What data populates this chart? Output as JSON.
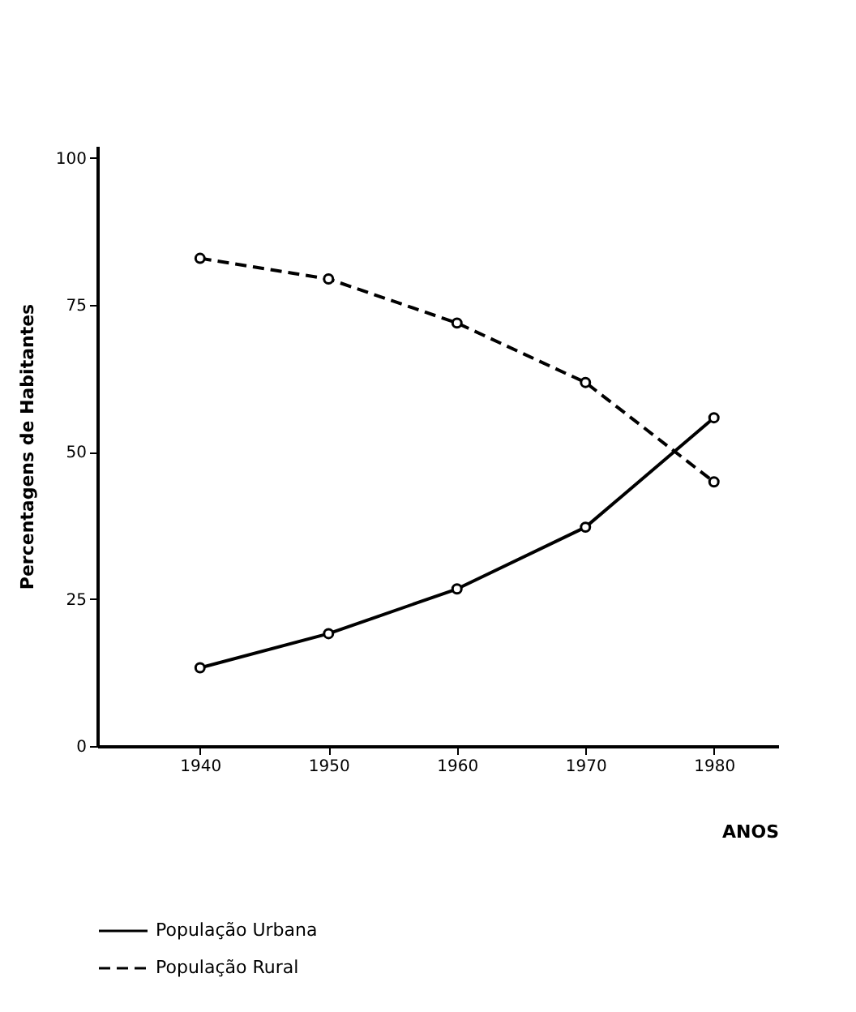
{
  "chart_data": {
    "type": "line",
    "xlabel": "ANOS",
    "ylabel": "Percentagens de Habitantes",
    "x": [
      1940,
      1950,
      1960,
      1970,
      1980
    ],
    "series": [
      {
        "name": "População Urbana",
        "color": "#000000",
        "line_style": "solid",
        "values": [
          13.3,
          19.1,
          26.7,
          37.2,
          55.8
        ]
      },
      {
        "name": "População Rural",
        "color": "#000000",
        "line_style": "dashed",
        "values": [
          82.9,
          79.4,
          71.9,
          61.8,
          44.9
        ]
      }
    ],
    "xlim": [
      1932,
      1985
    ],
    "xticks": [
      1940,
      1950,
      1960,
      1970,
      1980
    ],
    "ylim": [
      0,
      102
    ],
    "yticks": [
      0,
      25,
      50,
      75,
      100
    ],
    "marker": "circle",
    "legend": "bottom left",
    "grid": false
  }
}
